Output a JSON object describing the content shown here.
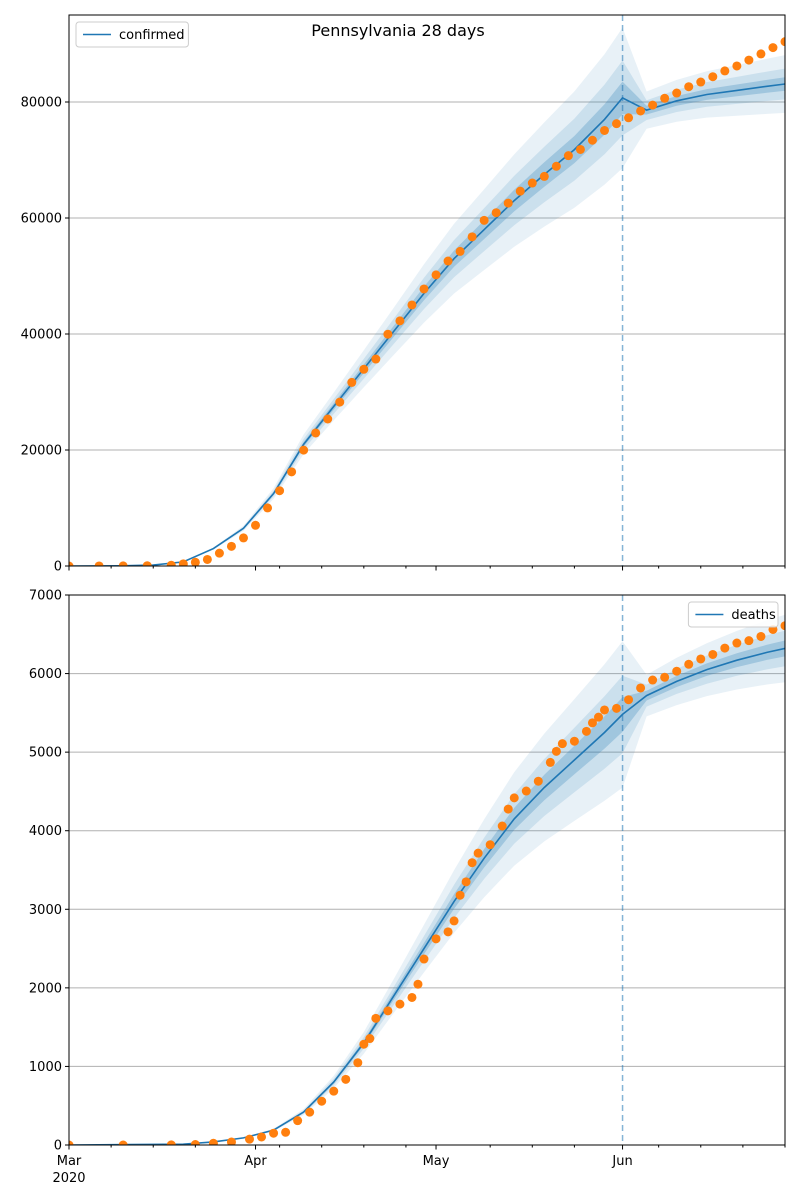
{
  "title": "Pennsylvania 28 days",
  "colors": {
    "model_line": "#1f77b4",
    "band": "#1f77b4",
    "observed_dots": "#ff7f0e",
    "grid": "#b0b0b0",
    "cutoff_line": "#1f77b4"
  },
  "chart_data": [
    {
      "type": "line",
      "name": "confirmed_panel",
      "legend": {
        "label": "confirmed",
        "placement": "top-left"
      },
      "x_range": [
        "2020-03-01",
        "2020-06-28"
      ],
      "ylim": [
        0,
        95000
      ],
      "yticks": [
        0,
        20000,
        40000,
        60000,
        80000
      ],
      "grid": "horizontal",
      "cutoff_date": "2020-06-01",
      "model": [
        {
          "x": "2020-03-01",
          "y": 0
        },
        {
          "x": "2020-03-10",
          "y": 40
        },
        {
          "x": "2020-03-15",
          "y": 150
        },
        {
          "x": "2020-03-20",
          "y": 700
        },
        {
          "x": "2020-03-25",
          "y": 3000
        },
        {
          "x": "2020-03-30",
          "y": 6500
        },
        {
          "x": "2020-04-04",
          "y": 12500
        },
        {
          "x": "2020-04-09",
          "y": 21000
        },
        {
          "x": "2020-04-14",
          "y": 27500
        },
        {
          "x": "2020-04-19",
          "y": 34000
        },
        {
          "x": "2020-04-24",
          "y": 40500
        },
        {
          "x": "2020-04-29",
          "y": 47000
        },
        {
          "x": "2020-05-04",
          "y": 53000
        },
        {
          "x": "2020-05-09",
          "y": 58000
        },
        {
          "x": "2020-05-14",
          "y": 63000
        },
        {
          "x": "2020-05-19",
          "y": 67500
        },
        {
          "x": "2020-05-24",
          "y": 71800
        },
        {
          "x": "2020-05-29",
          "y": 77000
        },
        {
          "x": "2020-06-01",
          "y": 80700
        },
        {
          "x": "2020-06-05",
          "y": 78600
        },
        {
          "x": "2020-06-10",
          "y": 80200
        },
        {
          "x": "2020-06-15",
          "y": 81300
        },
        {
          "x": "2020-06-20",
          "y": 82000
        },
        {
          "x": "2020-06-25",
          "y": 82700
        },
        {
          "x": "2020-06-28",
          "y": 83100
        }
      ],
      "bands": [
        {
          "spread": 0.035,
          "opacity": 0.25
        },
        {
          "spread": 0.08,
          "opacity": 0.14
        },
        {
          "spread": 0.15,
          "opacity": 0.1
        }
      ],
      "observed": [
        {
          "x": "2020-03-01",
          "y": 0
        },
        {
          "x": "2020-03-06",
          "y": 2
        },
        {
          "x": "2020-03-10",
          "y": 12
        },
        {
          "x": "2020-03-14",
          "y": 47
        },
        {
          "x": "2020-03-18",
          "y": 133
        },
        {
          "x": "2020-03-20",
          "y": 371
        },
        {
          "x": "2020-03-22",
          "y": 644
        },
        {
          "x": "2020-03-24",
          "y": 1127
        },
        {
          "x": "2020-03-26",
          "y": 2218
        },
        {
          "x": "2020-03-28",
          "y": 3394
        },
        {
          "x": "2020-03-30",
          "y": 4843
        },
        {
          "x": "2020-04-01",
          "y": 7016
        },
        {
          "x": "2020-04-03",
          "y": 10017
        },
        {
          "x": "2020-04-05",
          "y": 12980
        },
        {
          "x": "2020-04-07",
          "y": 16239
        },
        {
          "x": "2020-04-09",
          "y": 19979
        },
        {
          "x": "2020-04-11",
          "y": 22938
        },
        {
          "x": "2020-04-13",
          "y": 25345
        },
        {
          "x": "2020-04-15",
          "y": 28258
        },
        {
          "x": "2020-04-17",
          "y": 31652
        },
        {
          "x": "2020-04-19",
          "y": 33914
        },
        {
          "x": "2020-04-21",
          "y": 35684
        },
        {
          "x": "2020-04-23",
          "y": 39962
        },
        {
          "x": "2020-04-25",
          "y": 42263
        },
        {
          "x": "2020-04-27",
          "y": 45007
        },
        {
          "x": "2020-04-29",
          "y": 47765
        },
        {
          "x": "2020-05-01",
          "y": 50194
        },
        {
          "x": "2020-05-03",
          "y": 52583
        },
        {
          "x": "2020-05-05",
          "y": 54238
        },
        {
          "x": "2020-05-07",
          "y": 56751
        },
        {
          "x": "2020-05-09",
          "y": 59600
        },
        {
          "x": "2020-05-11",
          "y": 60913
        },
        {
          "x": "2020-05-13",
          "y": 62567
        },
        {
          "x": "2020-05-15",
          "y": 64631
        },
        {
          "x": "2020-05-17",
          "y": 66026
        },
        {
          "x": "2020-05-19",
          "y": 67174
        },
        {
          "x": "2020-05-21",
          "y": 68916
        },
        {
          "x": "2020-05-23",
          "y": 70745
        },
        {
          "x": "2020-05-25",
          "y": 71814
        },
        {
          "x": "2020-05-27",
          "y": 73405
        },
        {
          "x": "2020-05-29",
          "y": 75093
        },
        {
          "x": "2020-05-31",
          "y": 76267
        },
        {
          "x": "2020-06-02",
          "y": 77282
        },
        {
          "x": "2020-06-04",
          "y": 78456
        },
        {
          "x": "2020-06-06",
          "y": 79470
        },
        {
          "x": "2020-06-08",
          "y": 80640
        },
        {
          "x": "2020-06-10",
          "y": 81544
        },
        {
          "x": "2020-06-12",
          "y": 82640
        },
        {
          "x": "2020-06-14",
          "y": 83441
        },
        {
          "x": "2020-06-16",
          "y": 84357
        },
        {
          "x": "2020-06-18",
          "y": 85361
        },
        {
          "x": "2020-06-20",
          "y": 86210
        },
        {
          "x": "2020-06-22",
          "y": 87227
        },
        {
          "x": "2020-06-24",
          "y": 88293
        },
        {
          "x": "2020-06-26",
          "y": 89380
        },
        {
          "x": "2020-06-28",
          "y": 90400
        }
      ]
    },
    {
      "type": "line",
      "name": "deaths_panel",
      "legend": {
        "label": "deaths",
        "placement": "top-right"
      },
      "x_range": [
        "2020-03-01",
        "2020-06-28"
      ],
      "ylim": [
        0,
        7000
      ],
      "yticks": [
        0,
        1000,
        2000,
        3000,
        4000,
        5000,
        6000,
        7000
      ],
      "grid": "horizontal",
      "cutoff_date": "2020-06-01",
      "model": [
        {
          "x": "2020-03-01",
          "y": 0
        },
        {
          "x": "2020-03-20",
          "y": 10
        },
        {
          "x": "2020-03-25",
          "y": 40
        },
        {
          "x": "2020-03-30",
          "y": 90
        },
        {
          "x": "2020-04-04",
          "y": 190
        },
        {
          "x": "2020-04-09",
          "y": 420
        },
        {
          "x": "2020-04-14",
          "y": 800
        },
        {
          "x": "2020-04-19",
          "y": 1300
        },
        {
          "x": "2020-04-24",
          "y": 1900
        },
        {
          "x": "2020-04-29",
          "y": 2500
        },
        {
          "x": "2020-05-04",
          "y": 3100
        },
        {
          "x": "2020-05-09",
          "y": 3650
        },
        {
          "x": "2020-05-14",
          "y": 4150
        },
        {
          "x": "2020-05-19",
          "y": 4550
        },
        {
          "x": "2020-05-24",
          "y": 4900
        },
        {
          "x": "2020-05-29",
          "y": 5250
        },
        {
          "x": "2020-06-01",
          "y": 5480
        },
        {
          "x": "2020-06-05",
          "y": 5720
        },
        {
          "x": "2020-06-10",
          "y": 5900
        },
        {
          "x": "2020-06-15",
          "y": 6050
        },
        {
          "x": "2020-06-20",
          "y": 6170
        },
        {
          "x": "2020-06-25",
          "y": 6270
        },
        {
          "x": "2020-06-28",
          "y": 6320
        }
      ],
      "bands": [
        {
          "spread": 0.04,
          "opacity": 0.25
        },
        {
          "spread": 0.09,
          "opacity": 0.14
        },
        {
          "spread": 0.17,
          "opacity": 0.1
        }
      ],
      "observed": [
        {
          "x": "2020-03-01",
          "y": 0
        },
        {
          "x": "2020-03-10",
          "y": 0
        },
        {
          "x": "2020-03-18",
          "y": 1
        },
        {
          "x": "2020-03-22",
          "y": 6
        },
        {
          "x": "2020-03-25",
          "y": 22
        },
        {
          "x": "2020-03-28",
          "y": 38
        },
        {
          "x": "2020-03-31",
          "y": 74
        },
        {
          "x": "2020-04-02",
          "y": 102
        },
        {
          "x": "2020-04-04",
          "y": 150
        },
        {
          "x": "2020-04-06",
          "y": 162
        },
        {
          "x": "2020-04-08",
          "y": 310
        },
        {
          "x": "2020-04-10",
          "y": 418
        },
        {
          "x": "2020-04-12",
          "y": 557
        },
        {
          "x": "2020-04-14",
          "y": 685
        },
        {
          "x": "2020-04-16",
          "y": 836
        },
        {
          "x": "2020-04-18",
          "y": 1047
        },
        {
          "x": "2020-04-19",
          "y": 1283
        },
        {
          "x": "2020-04-20",
          "y": 1355
        },
        {
          "x": "2020-04-21",
          "y": 1612
        },
        {
          "x": "2020-04-23",
          "y": 1707
        },
        {
          "x": "2020-04-25",
          "y": 1793
        },
        {
          "x": "2020-04-27",
          "y": 1878
        },
        {
          "x": "2020-04-28",
          "y": 2046
        },
        {
          "x": "2020-04-29",
          "y": 2367
        },
        {
          "x": "2020-05-01",
          "y": 2624
        },
        {
          "x": "2020-05-03",
          "y": 2713
        },
        {
          "x": "2020-05-04",
          "y": 2852
        },
        {
          "x": "2020-05-05",
          "y": 3179
        },
        {
          "x": "2020-05-06",
          "y": 3349
        },
        {
          "x": "2020-05-07",
          "y": 3593
        },
        {
          "x": "2020-05-08",
          "y": 3714
        },
        {
          "x": "2020-05-10",
          "y": 3822
        },
        {
          "x": "2020-05-12",
          "y": 4060
        },
        {
          "x": "2020-05-13",
          "y": 4275
        },
        {
          "x": "2020-05-14",
          "y": 4418
        },
        {
          "x": "2020-05-16",
          "y": 4505
        },
        {
          "x": "2020-05-18",
          "y": 4630
        },
        {
          "x": "2020-05-20",
          "y": 4869
        },
        {
          "x": "2020-05-21",
          "y": 5010
        },
        {
          "x": "2020-05-22",
          "y": 5108
        },
        {
          "x": "2020-05-24",
          "y": 5139
        },
        {
          "x": "2020-05-26",
          "y": 5265
        },
        {
          "x": "2020-05-27",
          "y": 5373
        },
        {
          "x": "2020-05-28",
          "y": 5445
        },
        {
          "x": "2020-05-29",
          "y": 5537
        },
        {
          "x": "2020-05-31",
          "y": 5557
        },
        {
          "x": "2020-06-02",
          "y": 5667
        },
        {
          "x": "2020-06-04",
          "y": 5817
        },
        {
          "x": "2020-06-06",
          "y": 5918
        },
        {
          "x": "2020-06-08",
          "y": 5953
        },
        {
          "x": "2020-06-10",
          "y": 6030
        },
        {
          "x": "2020-06-12",
          "y": 6118
        },
        {
          "x": "2020-06-14",
          "y": 6186
        },
        {
          "x": "2020-06-16",
          "y": 6243
        },
        {
          "x": "2020-06-18",
          "y": 6324
        },
        {
          "x": "2020-06-20",
          "y": 6389
        },
        {
          "x": "2020-06-22",
          "y": 6419
        },
        {
          "x": "2020-06-24",
          "y": 6472
        },
        {
          "x": "2020-06-26",
          "y": 6561
        },
        {
          "x": "2020-06-28",
          "y": 6609
        }
      ]
    }
  ],
  "x_axis": {
    "month_ticks": [
      {
        "date": "2020-03-01",
        "label": "Mar"
      },
      {
        "date": "2020-04-01",
        "label": "Apr"
      },
      {
        "date": "2020-05-01",
        "label": "May"
      },
      {
        "date": "2020-06-01",
        "label": "Jun"
      }
    ],
    "year_label": "2020"
  }
}
